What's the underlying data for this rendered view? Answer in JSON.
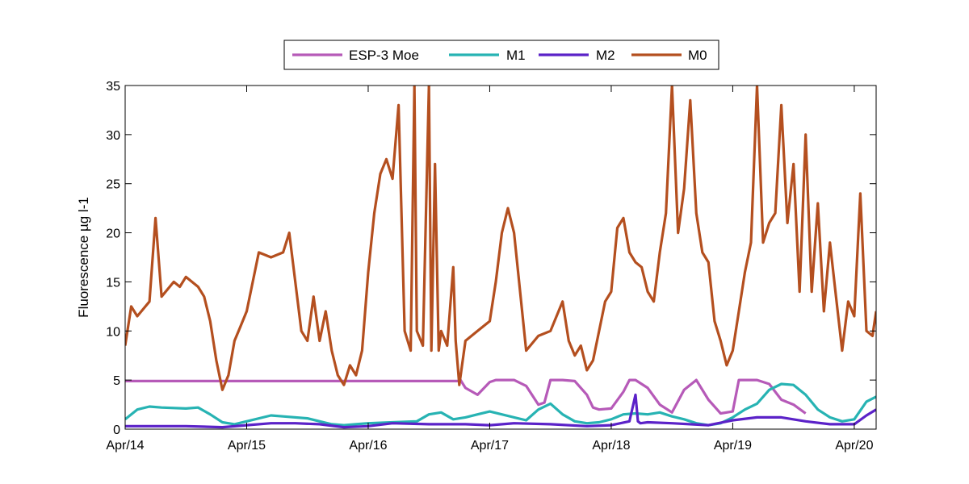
{
  "chart_data": {
    "type": "line",
    "title": "",
    "xlabel": "",
    "ylabel": "Fluorescence µg l-1",
    "xlim": [
      0,
      6.18
    ],
    "ylim": [
      0,
      35
    ],
    "grid": false,
    "legend_position": "top-center",
    "x_ticks": [
      {
        "value": 0,
        "label": "Apr/14"
      },
      {
        "value": 1,
        "label": "Apr/15"
      },
      {
        "value": 2,
        "label": "Apr/16"
      },
      {
        "value": 3,
        "label": "Apr/17"
      },
      {
        "value": 4,
        "label": "Apr/18"
      },
      {
        "value": 5,
        "label": "Apr/19"
      },
      {
        "value": 6,
        "label": "Apr/20"
      }
    ],
    "y_ticks": [
      {
        "value": 0,
        "label": "0"
      },
      {
        "value": 5,
        "label": "5"
      },
      {
        "value": 10,
        "label": "10"
      },
      {
        "value": 15,
        "label": "15"
      },
      {
        "value": 20,
        "label": "20"
      },
      {
        "value": 25,
        "label": "25"
      },
      {
        "value": 30,
        "label": "30"
      },
      {
        "value": 35,
        "label": "35"
      }
    ],
    "series": [
      {
        "name": "ESP-3 Moe",
        "color": "#b65ab8",
        "x": [
          0,
          0.5,
          1.0,
          1.5,
          2.0,
          2.5,
          2.74,
          2.76,
          2.8,
          2.9,
          3.0,
          3.05,
          3.1,
          3.2,
          3.3,
          3.4,
          3.45,
          3.5,
          3.6,
          3.7,
          3.8,
          3.85,
          3.9,
          4.0,
          4.1,
          4.15,
          4.2,
          4.3,
          4.4,
          4.5,
          4.6,
          4.7,
          4.8,
          4.9,
          5.0,
          5.05,
          5.1,
          5.2,
          5.3,
          5.4,
          5.5,
          5.6
        ],
        "y": [
          4.9,
          4.9,
          4.9,
          4.9,
          4.9,
          4.9,
          4.9,
          5.0,
          4.2,
          3.5,
          4.8,
          5.0,
          5.0,
          5.0,
          4.4,
          2.5,
          2.7,
          5.0,
          5.0,
          4.9,
          3.5,
          2.2,
          2.0,
          2.1,
          3.8,
          5.0,
          5.0,
          4.2,
          2.5,
          1.7,
          4.0,
          5.0,
          3.0,
          1.6,
          1.8,
          5.0,
          5.0,
          5.0,
          4.6,
          3.0,
          2.5,
          1.6
        ]
      },
      {
        "name": "M1",
        "color": "#27b3b3",
        "x": [
          0,
          0.1,
          0.2,
          0.3,
          0.5,
          0.6,
          0.7,
          0.8,
          0.9,
          1.0,
          1.2,
          1.3,
          1.5,
          1.6,
          1.7,
          1.8,
          1.9,
          2.0,
          2.2,
          2.4,
          2.5,
          2.6,
          2.7,
          2.8,
          2.9,
          3.0,
          3.2,
          3.3,
          3.4,
          3.5,
          3.6,
          3.7,
          3.8,
          3.9,
          4.0,
          4.1,
          4.2,
          4.3,
          4.4,
          4.5,
          4.6,
          4.7,
          4.8,
          4.9,
          5.0,
          5.1,
          5.2,
          5.3,
          5.4,
          5.5,
          5.6,
          5.7,
          5.8,
          5.9,
          6.0,
          6.1,
          6.18
        ],
        "y": [
          1.0,
          2.0,
          2.3,
          2.2,
          2.1,
          2.2,
          1.5,
          0.7,
          0.5,
          0.8,
          1.4,
          1.3,
          1.1,
          0.8,
          0.5,
          0.4,
          0.5,
          0.6,
          0.7,
          0.8,
          1.5,
          1.7,
          1.0,
          1.2,
          1.5,
          1.8,
          1.2,
          0.9,
          2.0,
          2.6,
          1.5,
          0.8,
          0.6,
          0.7,
          1.0,
          1.5,
          1.6,
          1.5,
          1.7,
          1.3,
          1.0,
          0.6,
          0.4,
          0.6,
          1.2,
          2.0,
          2.6,
          4.0,
          4.6,
          4.5,
          3.5,
          2.0,
          1.2,
          0.8,
          1.0,
          2.8,
          3.3
        ]
      },
      {
        "name": "M2",
        "color": "#5b22c8",
        "x": [
          0,
          0.5,
          0.8,
          1.0,
          1.2,
          1.4,
          1.6,
          1.8,
          2.0,
          2.2,
          2.5,
          2.8,
          3.0,
          3.2,
          3.5,
          3.8,
          4.0,
          4.15,
          4.2,
          4.22,
          4.24,
          4.3,
          4.5,
          4.8,
          5.0,
          5.2,
          5.4,
          5.6,
          5.8,
          6.0,
          6.1,
          6.18
        ],
        "y": [
          0.3,
          0.3,
          0.2,
          0.4,
          0.6,
          0.6,
          0.5,
          0.2,
          0.3,
          0.6,
          0.5,
          0.5,
          0.4,
          0.6,
          0.5,
          0.3,
          0.4,
          0.8,
          3.5,
          0.8,
          0.6,
          0.7,
          0.6,
          0.4,
          0.9,
          1.2,
          1.2,
          0.8,
          0.5,
          0.5,
          1.4,
          2.0
        ]
      },
      {
        "name": "M0",
        "color": "#b44f1f",
        "x": [
          0,
          0.05,
          0.1,
          0.2,
          0.25,
          0.3,
          0.4,
          0.45,
          0.5,
          0.6,
          0.65,
          0.7,
          0.75,
          0.8,
          0.85,
          0.9,
          0.95,
          1.0,
          1.05,
          1.1,
          1.2,
          1.3,
          1.35,
          1.4,
          1.45,
          1.5,
          1.55,
          1.6,
          1.65,
          1.7,
          1.75,
          1.8,
          1.85,
          1.9,
          1.95,
          2.0,
          2.05,
          2.1,
          2.15,
          2.2,
          2.25,
          2.3,
          2.35,
          2.38,
          2.4,
          2.45,
          2.5,
          2.52,
          2.55,
          2.58,
          2.6,
          2.65,
          2.7,
          2.72,
          2.75,
          2.8,
          2.9,
          3.0,
          3.05,
          3.1,
          3.15,
          3.2,
          3.25,
          3.3,
          3.4,
          3.5,
          3.6,
          3.65,
          3.7,
          3.75,
          3.8,
          3.85,
          3.9,
          3.95,
          4.0,
          4.05,
          4.1,
          4.15,
          4.2,
          4.25,
          4.3,
          4.35,
          4.4,
          4.45,
          4.5,
          4.55,
          4.6,
          4.65,
          4.7,
          4.75,
          4.8,
          4.85,
          4.9,
          4.95,
          5.0,
          5.05,
          5.1,
          5.15,
          5.2,
          5.25,
          5.3,
          5.35,
          5.4,
          5.45,
          5.5,
          5.55,
          5.6,
          5.65,
          5.7,
          5.75,
          5.8,
          5.85,
          5.9,
          5.95,
          6.0,
          6.05,
          6.1,
          6.15,
          6.18
        ],
        "y": [
          8.5,
          12.5,
          11.5,
          13.0,
          21.5,
          13.5,
          15.0,
          14.5,
          15.5,
          14.5,
          13.5,
          11.0,
          7.0,
          4.0,
          5.5,
          9.0,
          10.5,
          12.0,
          15.0,
          18.0,
          17.5,
          18.0,
          20.0,
          15.0,
          10.0,
          9.0,
          13.5,
          9.0,
          12.0,
          8.0,
          5.5,
          4.5,
          6.5,
          5.5,
          8.0,
          16.0,
          22.0,
          26.0,
          27.5,
          25.5,
          33.0,
          10.0,
          8.0,
          35.0,
          10.0,
          8.5,
          35.0,
          8.0,
          27.0,
          8.0,
          10.0,
          8.5,
          16.5,
          9.0,
          4.5,
          9.0,
          10.0,
          11.0,
          15.0,
          20.0,
          22.5,
          20.0,
          14.0,
          8.0,
          9.5,
          10.0,
          13.0,
          9.0,
          7.5,
          8.5,
          6.0,
          7.0,
          10.0,
          13.0,
          14.0,
          20.5,
          21.5,
          18.0,
          17.0,
          16.5,
          14.0,
          13.0,
          18.0,
          22.0,
          35.0,
          20.0,
          24.5,
          33.5,
          22.0,
          18.0,
          17.0,
          11.0,
          9.0,
          6.5,
          8.0,
          12.0,
          16.0,
          19.0,
          35.0,
          19.0,
          21.0,
          22.0,
          33.0,
          21.0,
          27.0,
          14.0,
          30.0,
          14.0,
          23.0,
          12.0,
          19.0,
          13.5,
          8.0,
          13.0,
          11.5,
          24.0,
          10.0,
          9.5,
          12.0
        ]
      }
    ]
  }
}
